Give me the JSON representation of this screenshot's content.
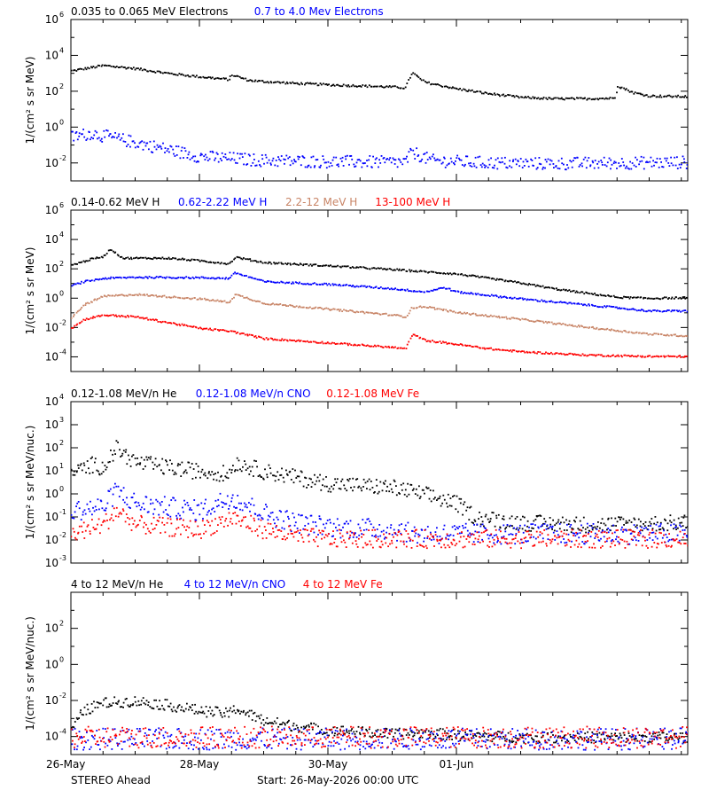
{
  "chart_data": [
    {
      "type": "scatter",
      "ylabel": "1/(cm² s sr MeV)",
      "yscale": "log",
      "ylim": [
        0.001,
        1000000
      ],
      "yticks": [
        {
          "v": 0.01,
          "b": "10",
          "e": "-2"
        },
        {
          "v": 1,
          "b": "10",
          "e": "0"
        },
        {
          "v": 100,
          "b": "10",
          "e": "2"
        },
        {
          "v": 10000,
          "b": "10",
          "e": "4"
        },
        {
          "v": 1000000,
          "b": "10",
          "e": "6"
        }
      ],
      "legend": [
        {
          "label": "0.035 to 0.065 MeV Electrons",
          "color": "#000000"
        },
        {
          "label": "0.7 to 4.0 Mev Electrons",
          "color": "#0000ff"
        }
      ],
      "series": [
        {
          "color": "#000000",
          "style": "line",
          "points": [
            [
              0,
              1500
            ],
            [
              0.5,
              3000
            ],
            [
              1,
              2000
            ],
            [
              1.5,
              1100
            ],
            [
              2,
              700
            ],
            [
              2.45,
              500
            ],
            [
              2.5,
              900
            ],
            [
              2.75,
              450
            ],
            [
              3,
              380
            ],
            [
              3.5,
              300
            ],
            [
              4,
              250
            ],
            [
              4.5,
              220
            ],
            [
              5,
              190
            ],
            [
              5.2,
              170
            ],
            [
              5.3,
              1200
            ],
            [
              5.5,
              350
            ],
            [
              6,
              150
            ],
            [
              6.5,
              80
            ],
            [
              7,
              50
            ],
            [
              7.5,
              42
            ],
            [
              8,
              42
            ],
            [
              8.45,
              45
            ],
            [
              8.5,
              220
            ],
            [
              8.75,
              90
            ],
            [
              9,
              60
            ],
            [
              9.6,
              55
            ]
          ]
        },
        {
          "color": "#0000ff",
          "style": "dense",
          "scatter": 0.35,
          "points": [
            [
              0,
              0.3
            ],
            [
              0.3,
              0.5
            ],
            [
              1,
              0.15
            ],
            [
              2,
              0.025
            ],
            [
              3,
              0.015
            ],
            [
              4,
              0.013
            ],
            [
              5,
              0.012
            ],
            [
              5.2,
              0.012
            ],
            [
              5.3,
              0.045
            ],
            [
              5.6,
              0.015
            ],
            [
              6.5,
              0.011
            ],
            [
              7.5,
              0.01
            ],
            [
              8.5,
              0.011
            ],
            [
              9.6,
              0.012
            ]
          ]
        }
      ]
    },
    {
      "type": "scatter",
      "ylabel": "1/(cm² s sr MeV)",
      "yscale": "log",
      "ylim": [
        1e-05,
        1000000
      ],
      "yticks": [
        {
          "v": 0.0001,
          "b": "10",
          "e": "-4"
        },
        {
          "v": 0.01,
          "b": "10",
          "e": "-2"
        },
        {
          "v": 1,
          "b": "10",
          "e": "0"
        },
        {
          "v": 100,
          "b": "10",
          "e": "2"
        },
        {
          "v": 10000,
          "b": "10",
          "e": "4"
        },
        {
          "v": 1000000,
          "b": "10",
          "e": "6"
        }
      ],
      "legend": [
        {
          "label": "0.14-0.62 MeV H",
          "color": "#000000"
        },
        {
          "label": "0.62-2.22 MeV H",
          "color": "#0000ff"
        },
        {
          "label": "2.2-12 MeV H",
          "color": "#c88466"
        },
        {
          "label": "13-100 MeV H",
          "color": "#ff0000"
        }
      ],
      "series": [
        {
          "color": "#000000",
          "style": "line",
          "points": [
            [
              0,
              200
            ],
            [
              0.3,
              500
            ],
            [
              0.5,
              800
            ],
            [
              0.6,
              2500
            ],
            [
              0.8,
              600
            ],
            [
              1.5,
              600
            ],
            [
              2,
              400
            ],
            [
              2.45,
              250
            ],
            [
              2.55,
              700
            ],
            [
              3,
              300
            ],
            [
              4,
              180
            ],
            [
              5,
              100
            ],
            [
              6,
              50
            ],
            [
              6.5,
              25
            ],
            [
              7,
              12
            ],
            [
              7.5,
              5
            ],
            [
              8,
              2.5
            ],
            [
              8.5,
              1.3
            ],
            [
              9,
              1.1
            ],
            [
              9.6,
              1.2
            ]
          ]
        },
        {
          "color": "#0000ff",
          "style": "line",
          "points": [
            [
              0,
              8
            ],
            [
              0.2,
              15
            ],
            [
              0.5,
              25
            ],
            [
              1,
              30
            ],
            [
              2,
              28
            ],
            [
              2.45,
              25
            ],
            [
              2.55,
              60
            ],
            [
              3,
              15
            ],
            [
              4,
              10
            ],
            [
              5,
              5
            ],
            [
              5.5,
              3
            ],
            [
              5.8,
              6
            ],
            [
              6,
              3
            ],
            [
              7,
              1
            ],
            [
              8,
              0.4
            ],
            [
              9,
              0.15
            ],
            [
              9.6,
              0.15
            ]
          ]
        },
        {
          "color": "#c88466",
          "style": "line",
          "points": [
            [
              0,
              0.05
            ],
            [
              0.2,
              0.4
            ],
            [
              0.5,
              1.5
            ],
            [
              1,
              2
            ],
            [
              2,
              1
            ],
            [
              2.45,
              0.6
            ],
            [
              2.55,
              2
            ],
            [
              3,
              0.5
            ],
            [
              4,
              0.2
            ],
            [
              5,
              0.08
            ],
            [
              5.2,
              0.06
            ],
            [
              5.3,
              0.25
            ],
            [
              5.5,
              0.3
            ],
            [
              6,
              0.12
            ],
            [
              7,
              0.04
            ],
            [
              8,
              0.012
            ],
            [
              9,
              0.004
            ],
            [
              9.6,
              0.003
            ]
          ]
        },
        {
          "color": "#ff0000",
          "style": "line",
          "points": [
            [
              0,
              0.01
            ],
            [
              0.2,
              0.04
            ],
            [
              0.5,
              0.08
            ],
            [
              1,
              0.06
            ],
            [
              2,
              0.01
            ],
            [
              2.5,
              0.006
            ],
            [
              3,
              0.002
            ],
            [
              4,
              0.001
            ],
            [
              5,
              0.0005
            ],
            [
              5.2,
              0.0004
            ],
            [
              5.3,
              0.004
            ],
            [
              5.5,
              0.0015
            ],
            [
              6,
              0.0008
            ],
            [
              6.5,
              0.0004
            ],
            [
              7,
              0.00025
            ],
            [
              8,
              0.00015
            ],
            [
              9,
              0.00012
            ],
            [
              9.6,
              0.00012
            ]
          ]
        }
      ]
    },
    {
      "type": "scatter",
      "ylabel": "1/(cm² s sr MeV/nuc.)",
      "yscale": "log",
      "ylim": [
        0.001,
        10000
      ],
      "yticks": [
        {
          "v": 0.001,
          "b": "10",
          "e": "-3"
        },
        {
          "v": 0.01,
          "b": "10",
          "e": "-2"
        },
        {
          "v": 0.1,
          "b": "10",
          "e": "-1"
        },
        {
          "v": 1,
          "b": "10",
          "e": "0"
        },
        {
          "v": 10,
          "b": "10",
          "e": "1"
        },
        {
          "v": 100,
          "b": "10",
          "e": "2"
        },
        {
          "v": 1000,
          "b": "10",
          "e": "3"
        },
        {
          "v": 10000,
          "b": "10",
          "e": "4"
        }
      ],
      "legend": [
        {
          "label": "0.12-1.08 MeV/n He",
          "color": "#000000"
        },
        {
          "label": "0.12-1.08 MeV/n CNO",
          "color": "#0000ff"
        },
        {
          "label": "0.12-1.08 MeV Fe",
          "color": "#ff0000"
        }
      ],
      "series": [
        {
          "color": "#000000",
          "style": "dense",
          "scatter": 0.35,
          "points": [
            [
              0,
              8
            ],
            [
              0.3,
              20
            ],
            [
              0.5,
              15
            ],
            [
              0.7,
              100
            ],
            [
              1,
              25
            ],
            [
              1.5,
              15
            ],
            [
              2,
              10
            ],
            [
              2.45,
              8
            ],
            [
              2.55,
              25
            ],
            [
              3,
              10
            ],
            [
              4,
              3
            ],
            [
              5,
              2
            ],
            [
              5.5,
              1
            ],
            [
              6,
              0.4
            ],
            [
              6.3,
              0.1
            ],
            [
              7,
              0.06
            ],
            [
              8,
              0.05
            ],
            [
              9.6,
              0.06
            ]
          ]
        },
        {
          "color": "#0000ff",
          "style": "dense",
          "scatter": 0.45,
          "points": [
            [
              0,
              0.2
            ],
            [
              0.5,
              0.3
            ],
            [
              0.7,
              1.5
            ],
            [
              1,
              0.4
            ],
            [
              2,
              0.2
            ],
            [
              2.5,
              0.8
            ],
            [
              3,
              0.15
            ],
            [
              3.5,
              0.06
            ],
            [
              4,
              0.04
            ],
            [
              5,
              0.03
            ],
            [
              5.3,
              0.02
            ],
            [
              6,
              0.02
            ],
            [
              9.6,
              0.02
            ]
          ]
        },
        {
          "color": "#ff0000",
          "style": "dense",
          "scatter": 0.4,
          "points": [
            [
              0,
              0.02
            ],
            [
              0.5,
              0.05
            ],
            [
              0.7,
              0.2
            ],
            [
              1,
              0.05
            ],
            [
              2,
              0.03
            ],
            [
              2.5,
              0.1
            ],
            [
              3,
              0.03
            ],
            [
              3.5,
              0.015
            ],
            [
              4,
              0.012
            ],
            [
              9.6,
              0.012
            ]
          ]
        }
      ]
    },
    {
      "type": "scatter",
      "ylabel": "1/(cm² s sr MeV/nuc.)",
      "yscale": "log",
      "ylim": [
        1e-05,
        10000
      ],
      "yticks": [
        {
          "v": 0.0001,
          "b": "10",
          "e": "-4"
        },
        {
          "v": 0.01,
          "b": "10",
          "e": "-2"
        },
        {
          "v": 1,
          "b": "10",
          "e": "0"
        },
        {
          "v": 100,
          "b": "10",
          "e": "2"
        }
      ],
      "legend": [
        {
          "label": "4 to 12 MeV/n He",
          "color": "#000000"
        },
        {
          "label": "4 to 12 MeV/n CNO",
          "color": "#0000ff"
        },
        {
          "label": "4 to 12 MeV Fe",
          "color": "#ff0000"
        }
      ],
      "series": [
        {
          "color": "#000000",
          "style": "dense",
          "scatter": 0.3,
          "points": [
            [
              0,
              0.0003
            ],
            [
              0.2,
              0.003
            ],
            [
              0.5,
              0.008
            ],
            [
              1,
              0.01
            ],
            [
              1.5,
              0.006
            ],
            [
              2,
              0.003
            ],
            [
              2.45,
              0.002
            ],
            [
              2.55,
              0.004
            ],
            [
              3,
              0.0008
            ],
            [
              3.5,
              0.0004
            ],
            [
              4,
              0.00025
            ],
            [
              5,
              0.00015
            ],
            [
              5.5,
              0.00018
            ],
            [
              6,
              0.00013
            ],
            [
              7,
              0.0001
            ],
            [
              9.6,
              0.0001
            ]
          ]
        },
        {
          "color": "#0000ff",
          "style": "dense",
          "scatter": 0.6,
          "points": [
            [
              0,
              8e-05
            ],
            [
              2,
              8e-05
            ],
            [
              3,
              8e-05
            ],
            [
              4,
              8e-05
            ]
          ]
        },
        {
          "color": "#ff0000",
          "style": "dense",
          "scatter": 0.6,
          "points": [
            [
              0,
              0.0001
            ],
            [
              2,
              0.0001
            ],
            [
              3,
              0.0001
            ]
          ]
        }
      ]
    }
  ],
  "xaxis": {
    "start_day": 0,
    "end_day": 9.6,
    "ticks": [
      {
        "day": 0,
        "label": "26-May"
      },
      {
        "day": 2,
        "label": "28-May"
      },
      {
        "day": 4,
        "label": "30-May"
      },
      {
        "day": 6,
        "label": "01-Jun"
      }
    ]
  },
  "footer": {
    "spacecraft": "STEREO Ahead",
    "start": "Start: 26-May-2026 00:00 UTC"
  }
}
